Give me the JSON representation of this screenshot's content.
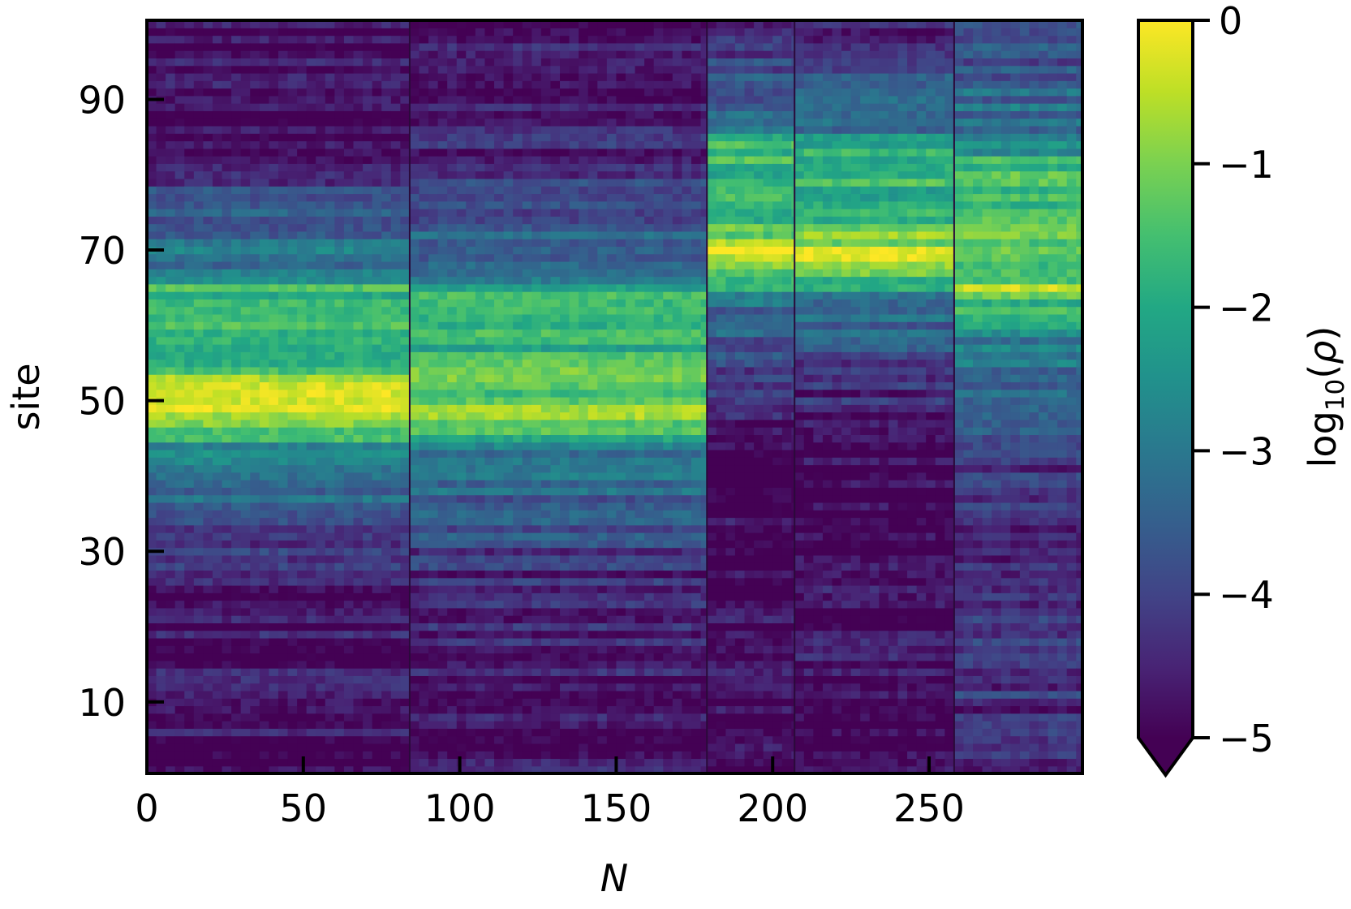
{
  "chart_data": {
    "type": "heatmap",
    "colormap": "viridis",
    "xlabel": "N",
    "ylabel": "site",
    "colorbar_label": "log10(ρ)",
    "colorbar_label_parts": {
      "prefix": "log",
      "subscript": "10",
      "open": "(",
      "symbol": "ρ",
      "close": ")"
    },
    "xlim": [
      0,
      299
    ],
    "ylim": [
      0.5,
      100.5
    ],
    "clim": [
      -5,
      0
    ],
    "colorbar_extend": "min",
    "x_ticks": [
      {
        "value": 0,
        "label": "0"
      },
      {
        "value": 50,
        "label": "50"
      },
      {
        "value": 100,
        "label": "100"
      },
      {
        "value": 150,
        "label": "150"
      },
      {
        "value": 200,
        "label": "200"
      },
      {
        "value": 250,
        "label": "250"
      }
    ],
    "y_ticks": [
      {
        "value": 10,
        "label": "10"
      },
      {
        "value": 30,
        "label": "30"
      },
      {
        "value": 50,
        "label": "50"
      },
      {
        "value": 70,
        "label": "70"
      },
      {
        "value": 90,
        "label": "90"
      }
    ],
    "colorbar_ticks": [
      {
        "value": 0,
        "label": "0"
      },
      {
        "value": -1,
        "label": "−1"
      },
      {
        "value": -2,
        "label": "−2"
      },
      {
        "value": -3,
        "label": "−3"
      },
      {
        "value": -4,
        "label": "−4"
      },
      {
        "value": -5,
        "label": "−5"
      }
    ],
    "segment_boundaries": [
      84,
      179,
      207,
      258
    ],
    "segments": [
      {
        "x_range": [
          0,
          84
        ],
        "peak_sites": [
          49,
          51.5
        ],
        "peak_value": -0.4,
        "core_sites": [
          45,
          65
        ],
        "core_value": -1.6,
        "mid_value": -2.6,
        "low_value": -4.8
      },
      {
        "x_range": [
          84,
          179
        ],
        "peak_sites": [
          48,
          53
        ],
        "peak_value": -0.6,
        "core_sites": [
          45,
          65
        ],
        "core_value": -1.7,
        "mid_value": -2.8,
        "low_value": -4.6
      },
      {
        "x_range": [
          179,
          207
        ],
        "peak_sites": [
          69.5
        ],
        "peak_value": -0.2,
        "core_sites": [
          65,
          85
        ],
        "core_value": -1.8,
        "mid_value": -3.0,
        "low_value": -5.0
      },
      {
        "x_range": [
          207,
          258
        ],
        "peak_sites": [
          69.5
        ],
        "peak_value": -0.3,
        "core_sites": [
          65,
          85
        ],
        "core_value": -1.8,
        "mid_value": -3.0,
        "low_value": -4.9
      },
      {
        "x_range": [
          258,
          299
        ],
        "peak_sites": [
          65,
          72
        ],
        "peak_value": -0.8,
        "core_sites": [
          60,
          82
        ],
        "core_value": -1.6,
        "mid_value": -2.7,
        "low_value": -4.3
      }
    ]
  }
}
